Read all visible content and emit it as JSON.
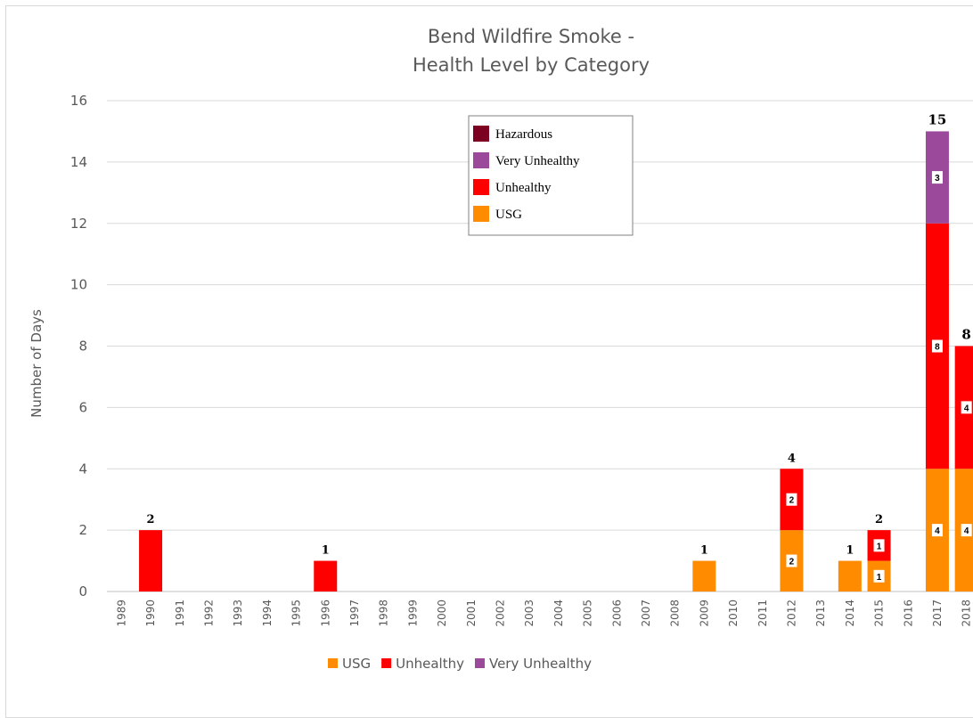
{
  "chart_data": {
    "type": "bar",
    "stacked": true,
    "title": [
      "Bend Wildfire Smoke -",
      "Health Level by Category"
    ],
    "ylabel": "Number of Days",
    "ylim": [
      0,
      16
    ],
    "yticks": [
      "0",
      "2",
      "4",
      "6",
      "8",
      "10",
      "12",
      "14",
      "16"
    ],
    "categories": [
      "1989",
      "1990",
      "1991",
      "1992",
      "1993",
      "1994",
      "1995",
      "1996",
      "1997",
      "1998",
      "1999",
      "2000",
      "2001",
      "2002",
      "2003",
      "2004",
      "2005",
      "2006",
      "2007",
      "2008",
      "2009",
      "2010",
      "2011",
      "2012",
      "2013",
      "2014",
      "2015",
      "2016",
      "2017",
      "2018"
    ],
    "series": [
      {
        "name": "USG",
        "color": "#ff8c00",
        "values": [
          0,
          0,
          0,
          0,
          0,
          0,
          0,
          0,
          0,
          0,
          0,
          0,
          0,
          0,
          0,
          0,
          0,
          0,
          0,
          0,
          1,
          0,
          0,
          2,
          0,
          1,
          1,
          0,
          4,
          4
        ],
        "labels": [
          "",
          "",
          "",
          "",
          "",
          "",
          "",
          "",
          "",
          "",
          "",
          "",
          "",
          "",
          "",
          "",
          "",
          "",
          "",
          "",
          "",
          "",
          "",
          "2",
          "",
          "",
          "1",
          "",
          "4",
          "4"
        ]
      },
      {
        "name": "Unhealthy",
        "color": "#ff0000",
        "values": [
          0,
          2,
          0,
          0,
          0,
          0,
          0,
          1,
          0,
          0,
          0,
          0,
          0,
          0,
          0,
          0,
          0,
          0,
          0,
          0,
          0,
          0,
          0,
          2,
          0,
          0,
          1,
          0,
          8,
          4
        ],
        "labels": [
          "",
          "",
          "",
          "",
          "",
          "",
          "",
          "",
          "",
          "",
          "",
          "",
          "",
          "",
          "",
          "",
          "",
          "",
          "",
          "",
          "",
          "",
          "",
          "2",
          "",
          "",
          "1",
          "",
          "8",
          "4"
        ]
      },
      {
        "name": "Very Unhealthy",
        "color": "#9b4a9b",
        "values": [
          0,
          0,
          0,
          0,
          0,
          0,
          0,
          0,
          0,
          0,
          0,
          0,
          0,
          0,
          0,
          0,
          0,
          0,
          0,
          0,
          0,
          0,
          0,
          0,
          0,
          0,
          0,
          0,
          3,
          0
        ],
        "labels": [
          "",
          "",
          "",
          "",
          "",
          "",
          "",
          "",
          "",
          "",
          "",
          "",
          "",
          "",
          "",
          "",
          "",
          "",
          "",
          "",
          "",
          "",
          "",
          "",
          "",
          "",
          "",
          "",
          "3",
          ""
        ]
      }
    ],
    "totals": [
      "",
      "2",
      "",
      "",
      "",
      "",
      "",
      "1",
      "",
      "",
      "",
      "",
      "",
      "",
      "",
      "",
      "",
      "",
      "",
      "",
      "1",
      "",
      "",
      "4",
      "",
      "1",
      "2",
      "",
      "15",
      "8"
    ],
    "legend_inset": {
      "position": "top-center",
      "entries": [
        {
          "name": "Hazardous",
          "color": "#7b0022"
        },
        {
          "name": "Very Unhealthy",
          "color": "#9b4a9b"
        },
        {
          "name": "Unhealthy",
          "color": "#ff0000"
        },
        {
          "name": "USG",
          "color": "#ff8c00"
        }
      ]
    },
    "legend_bottom": {
      "position": "bottom",
      "entries": [
        {
          "name": "USG",
          "color": "#ff8c00"
        },
        {
          "name": "Unhealthy",
          "color": "#ff0000"
        },
        {
          "name": "Very Unhealthy",
          "color": "#9b4a9b"
        }
      ]
    }
  }
}
